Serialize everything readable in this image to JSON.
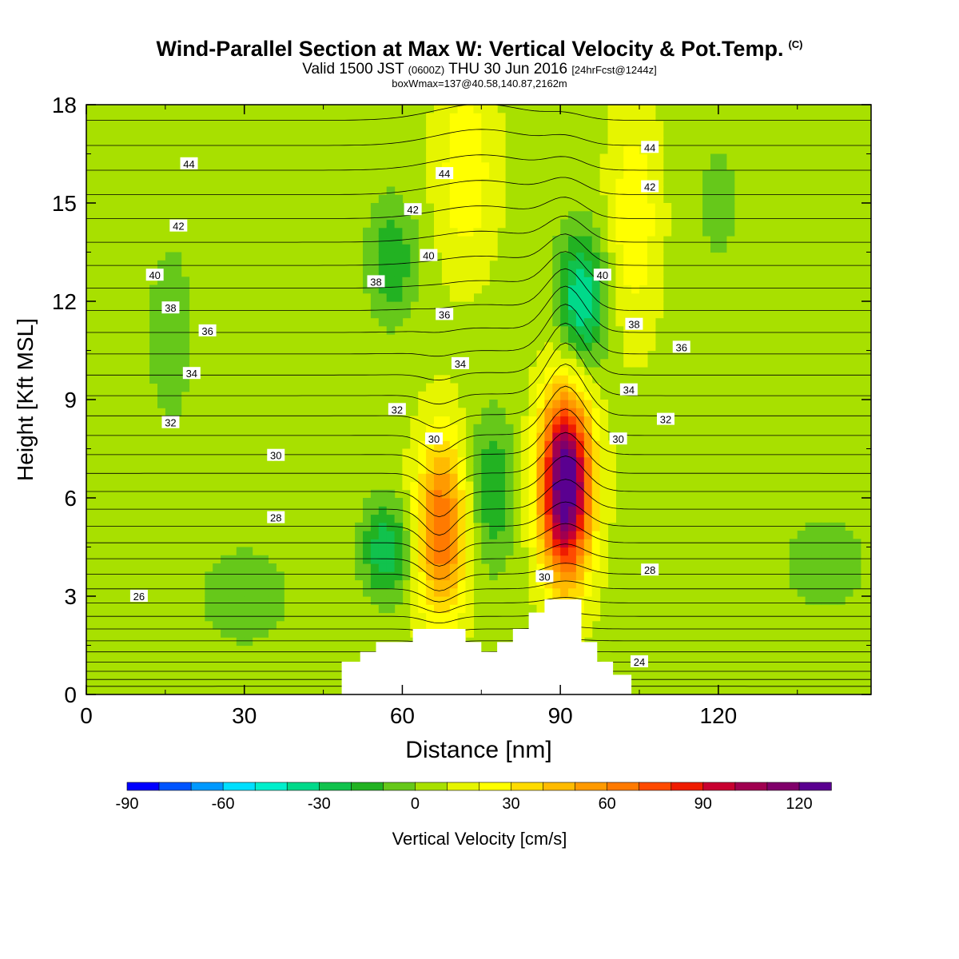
{
  "header": {
    "title": "Wind-Parallel Section at Max W: Vertical Velocity & Pot.Temp.",
    "copyright": "(C)",
    "valid_prefix": "Valid 1500 JST",
    "valid_utc": "(0600Z)",
    "valid_date": "THU 30 Jun 2016",
    "fcst": "[24hrFcst@1244z]",
    "boxwmax": "boxWmax=137@40.58,140.87,2162m"
  },
  "chart_data": {
    "type": "heatmap",
    "xlabel": "Distance [nm]",
    "ylabel": "Height [Kft MSL]",
    "xlim": [
      0,
      149
    ],
    "ylim": [
      0,
      18
    ],
    "x_ticks": [
      0,
      30,
      60,
      90,
      120
    ],
    "y_ticks": [
      0,
      3,
      6,
      9,
      12,
      15,
      18
    ],
    "colorbar": {
      "label": "Vertical Velocity [cm/s]",
      "ticks": [
        -90,
        -60,
        -30,
        0,
        30,
        60,
        90,
        120
      ],
      "levels": [
        -90,
        -80,
        -70,
        -60,
        -50,
        -40,
        -30,
        -20,
        -10,
        0,
        10,
        20,
        30,
        40,
        50,
        60,
        70,
        80,
        90,
        100,
        110,
        120
      ],
      "colors": [
        "#0000ff",
        "#0055ff",
        "#0099ff",
        "#00dfff",
        "#00efcc",
        "#00d98a",
        "#11c24d",
        "#22b222",
        "#66c81a",
        "#a8e000",
        "#e6f500",
        "#ffff00",
        "#ffdb00",
        "#ffbb00",
        "#ff9a00",
        "#ff7a00",
        "#ff4a00",
        "#ef1c00",
        "#c80030",
        "#a00050",
        "#80006a",
        "#5a0090"
      ]
    },
    "updrafts": [
      {
        "x": 67.5,
        "y_bottom": 2.0,
        "y_top": 8.2,
        "w_max": 70
      },
      {
        "x": 91,
        "y_bottom": 3.2,
        "y_top": 9.6,
        "w_max": 137
      }
    ],
    "downdrafts": [
      {
        "x": 57,
        "y_bottom": 3.0,
        "y_top": 5.8,
        "w_min": -30
      },
      {
        "x": 77,
        "y_bottom": 4.0,
        "y_top": 8.5,
        "w_min": -20
      },
      {
        "x": 94,
        "y_bottom": 10.0,
        "y_top": 14.0,
        "w_min": -40
      },
      {
        "x": 58,
        "y_bottom": 11.5,
        "y_top": 15.0,
        "w_min": -20
      }
    ],
    "terrain": [
      [
        0,
        0
      ],
      [
        48.5,
        0
      ],
      [
        48.5,
        1.0
      ],
      [
        52,
        1.0
      ],
      [
        52,
        1.3
      ],
      [
        55,
        1.3
      ],
      [
        55,
        1.6
      ],
      [
        62,
        1.6
      ],
      [
        62,
        2.0
      ],
      [
        72,
        2.0
      ],
      [
        72,
        1.6
      ],
      [
        75,
        1.6
      ],
      [
        75,
        1.3
      ],
      [
        78,
        1.3
      ],
      [
        78,
        1.6
      ],
      [
        81,
        1.6
      ],
      [
        81,
        2.0
      ],
      [
        84,
        2.0
      ],
      [
        84,
        2.5
      ],
      [
        87,
        2.5
      ],
      [
        87,
        2.9
      ],
      [
        94,
        2.9
      ],
      [
        94,
        1.6
      ],
      [
        97,
        1.6
      ],
      [
        97,
        1.0
      ],
      [
        100,
        1.0
      ],
      [
        100,
        0.6
      ],
      [
        103.5,
        0.6
      ],
      [
        103.5,
        0
      ],
      [
        149,
        0
      ]
    ],
    "theta_labels": [
      {
        "text": "44",
        "x": 19.5,
        "y": 16.2
      },
      {
        "text": "42",
        "x": 17.5,
        "y": 14.3
      },
      {
        "text": "40",
        "x": 13,
        "y": 12.8
      },
      {
        "text": "38",
        "x": 16,
        "y": 11.8
      },
      {
        "text": "36",
        "x": 23,
        "y": 11.1
      },
      {
        "text": "34",
        "x": 20,
        "y": 9.8
      },
      {
        "text": "32",
        "x": 16,
        "y": 8.3
      },
      {
        "text": "30",
        "x": 36,
        "y": 7.3
      },
      {
        "text": "28",
        "x": 36,
        "y": 5.4
      },
      {
        "text": "26",
        "x": 10,
        "y": 3.0
      },
      {
        "text": "44",
        "x": 68,
        "y": 15.9
      },
      {
        "text": "42",
        "x": 62,
        "y": 14.8
      },
      {
        "text": "40",
        "x": 65,
        "y": 13.4
      },
      {
        "text": "38",
        "x": 55,
        "y": 12.6
      },
      {
        "text": "36",
        "x": 68,
        "y": 11.6
      },
      {
        "text": "34",
        "x": 71,
        "y": 10.1
      },
      {
        "text": "32",
        "x": 59,
        "y": 8.7
      },
      {
        "text": "30",
        "x": 66,
        "y": 7.8
      },
      {
        "text": "30",
        "x": 87,
        "y": 3.6
      },
      {
        "text": "44",
        "x": 107,
        "y": 16.7
      },
      {
        "text": "42",
        "x": 107,
        "y": 15.5
      },
      {
        "text": "40",
        "x": 98,
        "y": 12.8
      },
      {
        "text": "38",
        "x": 104,
        "y": 11.3
      },
      {
        "text": "36",
        "x": 113,
        "y": 10.6
      },
      {
        "text": "34",
        "x": 103,
        "y": 9.3
      },
      {
        "text": "32",
        "x": 110,
        "y": 8.4
      },
      {
        "text": "30",
        "x": 101,
        "y": 7.8
      },
      {
        "text": "28",
        "x": 107,
        "y": 3.8
      },
      {
        "text": "24",
        "x": 105,
        "y": 1.0
      }
    ]
  }
}
